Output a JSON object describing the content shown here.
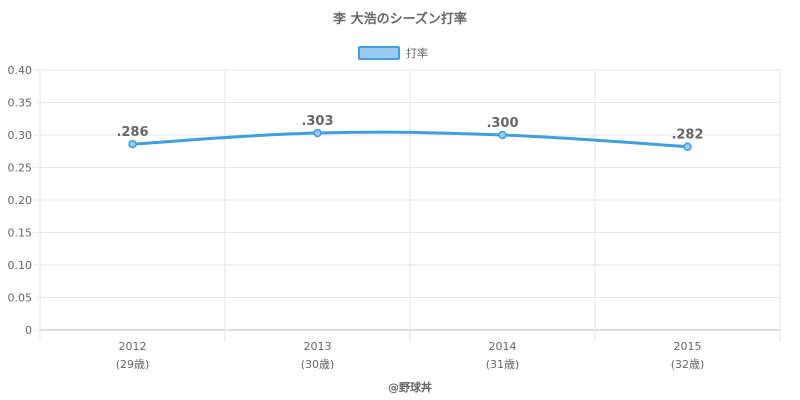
{
  "chart_data": {
    "type": "line",
    "title": "李 大浩のシーズン打率",
    "categories": [
      "2012",
      "2013",
      "2014",
      "2015"
    ],
    "sublabels": [
      "(29歳)",
      "(30歳)",
      "(31歳)",
      "(32歳)"
    ],
    "series": [
      {
        "name": "打率",
        "values": [
          0.286,
          0.303,
          0.3,
          0.282
        ],
        "labels": [
          ".286",
          ".303",
          ".300",
          ".282"
        ],
        "color": "#3fa0e0",
        "fill": "#99c9ef"
      }
    ],
    "ylim": [
      0,
      0.4
    ],
    "yticks": [
      "0",
      "0.05",
      "0.10",
      "0.15",
      "0.20",
      "0.25",
      "0.30",
      "0.35",
      "0.40"
    ],
    "grid": true,
    "legend_position": "top-center",
    "credit": "@野球丼"
  }
}
